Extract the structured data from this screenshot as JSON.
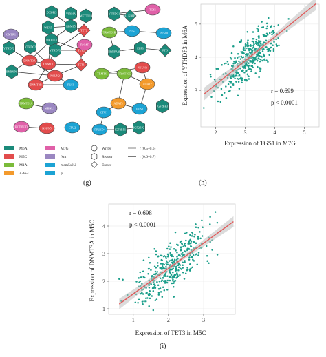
{
  "network": {
    "nodes": [
      {
        "id": "n1",
        "label": "ZC3H13",
        "shape": "hexagon",
        "color": "#1b8a7a"
      },
      {
        "id": "n2",
        "label": "VIRMA",
        "shape": "hexagon",
        "color": "#1b8a7a"
      },
      {
        "id": "n3",
        "label": "METTL14",
        "shape": "hexagon",
        "color": "#1b8a7a"
      },
      {
        "id": "n4",
        "label": "WTAP",
        "shape": "hexagon",
        "color": "#1b8a7a"
      },
      {
        "id": "n5",
        "label": "RBM15",
        "shape": "hexagon",
        "color": "#1b8a7a"
      },
      {
        "id": "n6",
        "label": "METTL3",
        "shape": "hexagon",
        "color": "#1b8a7a"
      },
      {
        "id": "n7",
        "label": "TET2",
        "shape": "diamond",
        "color": "#e24c4c"
      },
      {
        "id": "n8",
        "label": "CMTR1",
        "shape": "ellipse",
        "color": "#9a87c1"
      },
      {
        "id": "n9",
        "label": "YTHDF2",
        "shape": "hexagon",
        "color": "#1b8a7a"
      },
      {
        "id": "n10",
        "label": "YTHDC2",
        "shape": "hexagon",
        "color": "#1b8a7a"
      },
      {
        "id": "n11",
        "label": "YTHDF3",
        "shape": "hexagon",
        "color": "#1b8a7a"
      },
      {
        "id": "n12",
        "label": "TET3",
        "shape": "diamond",
        "color": "#e24c4c"
      },
      {
        "id": "n13",
        "label": "RNMT",
        "shape": "ellipse",
        "color": "#e060a8"
      },
      {
        "id": "n14",
        "label": "DNMT1",
        "shape": "ellipse",
        "color": "#e24c4c"
      },
      {
        "id": "n15",
        "label": "DNMT3A",
        "shape": "ellipse",
        "color": "#e24c4c"
      },
      {
        "id": "n16",
        "label": "TET1",
        "shape": "diamond",
        "color": "#e24c4c"
      },
      {
        "id": "n17",
        "label": "HNRNPC",
        "shape": "hexagon",
        "color": "#1b8a7a"
      },
      {
        "id": "n18",
        "label": "NSUN2",
        "shape": "ellipse",
        "color": "#e24c4c"
      },
      {
        "id": "n19",
        "label": "DNMT3B",
        "shape": "ellipse",
        "color": "#e24c4c"
      },
      {
        "id": "n20",
        "label": "PUS1",
        "shape": "ellipse",
        "color": "#1ca3d4"
      },
      {
        "id": "n21",
        "label": "TRMT61A",
        "shape": "ellipse",
        "color": "#7bbb3a"
      },
      {
        "id": "n22",
        "label": "MBNL1",
        "shape": "ellipse",
        "color": "#9a87c1"
      },
      {
        "id": "n23",
        "label": "BCDIN3D",
        "shape": "ellipse",
        "color": "#e060a8"
      },
      {
        "id": "n24",
        "label": "NSUN5",
        "shape": "ellipse",
        "color": "#e24c4c"
      },
      {
        "id": "n25",
        "label": "CTU2",
        "shape": "ellipse",
        "color": "#1ca3d4"
      },
      {
        "id": "n26",
        "label": "YTHDC1",
        "shape": "hexagon",
        "color": "#1b8a7a"
      },
      {
        "id": "n27",
        "label": "ALKBH5",
        "shape": "diamond",
        "color": "#1b8a7a"
      },
      {
        "id": "n28",
        "label": "TGS1",
        "shape": "ellipse",
        "color": "#e060a8"
      },
      {
        "id": "n29",
        "label": "TRMT61B",
        "shape": "ellipse",
        "color": "#7bbb3a"
      },
      {
        "id": "n30",
        "label": "PUS7",
        "shape": "ellipse",
        "color": "#1ca3d4"
      },
      {
        "id": "n31",
        "label": "PUS10",
        "shape": "ellipse",
        "color": "#1ca3d4"
      },
      {
        "id": "n32",
        "label": "HNRNPA2B1",
        "shape": "hexagon",
        "color": "#1b8a7a"
      },
      {
        "id": "n33",
        "label": "ELP3",
        "shape": "hexagon",
        "color": "#1b8a7a"
      },
      {
        "id": "n34",
        "label": "FTO",
        "shape": "diamond",
        "color": "#1b8a7a"
      },
      {
        "id": "n35",
        "label": "NSUN3",
        "shape": "ellipse",
        "color": "#e24c4c"
      },
      {
        "id": "n36",
        "label": "ADAT2",
        "shape": "ellipse",
        "color": "#f39a2c"
      },
      {
        "id": "n37",
        "label": "TRMT6",
        "shape": "ellipse",
        "color": "#7bbb3a"
      },
      {
        "id": "n38",
        "label": "TRMT10C",
        "shape": "ellipse",
        "color": "#7bbb3a"
      },
      {
        "id": "n39",
        "label": "ADAT3",
        "shape": "ellipse",
        "color": "#f39a2c"
      },
      {
        "id": "n40",
        "label": "CTU1",
        "shape": "ellipse",
        "color": "#1ca3d4"
      },
      {
        "id": "n41",
        "label": "PUS3",
        "shape": "ellipse",
        "color": "#1ca3d4"
      },
      {
        "id": "n42",
        "label": "RPUSD4",
        "shape": "ellipse",
        "color": "#1ca3d4"
      },
      {
        "id": "n43",
        "label": "IGF2BP1",
        "shape": "hexagon",
        "color": "#1b8a7a"
      },
      {
        "id": "n44",
        "label": "IGF2BP2",
        "shape": "hexagon",
        "color": "#1b8a7a"
      },
      {
        "id": "n45",
        "label": "IGF2BP3",
        "shape": "hexagon",
        "color": "#1b8a7a"
      }
    ],
    "legend_types": [
      {
        "label": "M6A",
        "color": "#1b8a7a"
      },
      {
        "label": "M7G",
        "color": "#e060a8"
      },
      {
        "label": "M5C",
        "color": "#e24c4c"
      },
      {
        "label": "Nm",
        "color": "#9a87c1"
      },
      {
        "label": "M1A",
        "color": "#7bbb3a"
      },
      {
        "label": "mcm5s2U",
        "color": "#1ca3d4"
      },
      {
        "label": "A-to-I",
        "color": "#f39a2c"
      },
      {
        "label": "ψ",
        "color": "#1ca3d4"
      }
    ],
    "legend_shapes": [
      {
        "label": "Writer",
        "shape": "circle"
      },
      {
        "label": "Reader",
        "shape": "hexagon"
      },
      {
        "label": "Eraser",
        "shape": "diamond"
      }
    ],
    "legend_lines": [
      {
        "label": "r (0.5–0.6)"
      },
      {
        "label": "r (0.6–0.7)"
      }
    ]
  },
  "panel_labels": {
    "g": "(g)",
    "h": "(h)",
    "i": "(i)"
  },
  "chart_data": [
    {
      "type": "scatter",
      "xlabel": "Expression of TGS1 in M7G",
      "ylabel": "Expression of YTHDF3 in M6A",
      "xlim": [
        1.5,
        5.5
      ],
      "ylim": [
        1.9,
        5.6
      ],
      "xticks": [
        2,
        3,
        4,
        5
      ],
      "yticks": [
        3,
        4,
        5
      ],
      "annotation_r": "r = 0.699",
      "annotation_p": "p < 0.0001",
      "fit": {
        "slope": 0.72,
        "intercept": 1.73
      },
      "point_color": "#1a9e8a",
      "fit_color": "#e05a5a",
      "grid": true,
      "n_points": 380,
      "x_center": 3.1,
      "x_sd": 0.5,
      "noise_sd": 0.33,
      "x_range": [
        1.6,
        5.4
      ],
      "y_range": [
        2.0,
        5.5
      ]
    },
    {
      "type": "scatter",
      "xlabel": "Expression of TET3 in M5C",
      "ylabel": "Expression of DNMT3A in M5C",
      "xlim": [
        0.3,
        3.9
      ],
      "ylim": [
        0.8,
        4.8
      ],
      "xticks": [
        1,
        2,
        3
      ],
      "yticks": [
        1,
        2,
        3,
        4
      ],
      "annotation_r": "r = 0.698",
      "annotation_p": "p < 0.0001",
      "fit": {
        "slope": 0.92,
        "intercept": 0.62
      },
      "point_color": "#1a9e8a",
      "fit_color": "#e05a5a",
      "grid": true,
      "n_points": 380,
      "x_center": 2.05,
      "x_sd": 0.55,
      "noise_sd": 0.42,
      "x_range": [
        0.6,
        3.85
      ],
      "y_range": [
        0.95,
        4.7
      ]
    }
  ]
}
